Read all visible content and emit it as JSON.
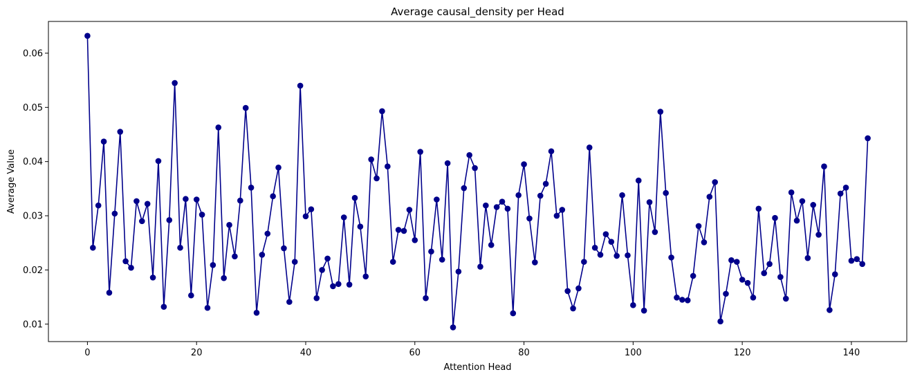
{
  "chart_data": {
    "type": "line",
    "title": "Average causal_density per Head",
    "xlabel": "Attention Head",
    "ylabel": "Average Value",
    "xlim": [
      -7.15,
      150.15
    ],
    "ylim": [
      0.00678,
      0.06586
    ],
    "x_ticks": [
      0,
      20,
      40,
      60,
      80,
      100,
      120,
      140
    ],
    "y_ticks": [
      0.01,
      0.02,
      0.03,
      0.04,
      0.05,
      0.06
    ],
    "x_tick_labels": [
      "0",
      "20",
      "40",
      "60",
      "80",
      "100",
      "120",
      "140"
    ],
    "y_tick_labels": [
      "0.01",
      "0.02",
      "0.03",
      "0.04",
      "0.05",
      "0.06"
    ],
    "grid": false,
    "line_color": "#00008b",
    "marker": "circle",
    "series": [
      {
        "x": [
          0,
          1,
          2,
          3,
          4,
          5,
          6,
          7,
          8,
          9,
          10,
          11,
          12,
          13,
          14,
          15,
          16,
          17,
          18,
          19,
          20,
          21,
          22,
          23,
          24,
          25,
          26,
          27,
          28,
          29,
          30,
          31,
          32,
          33,
          34,
          35,
          36,
          37,
          38,
          39,
          40,
          41,
          42,
          43,
          44,
          45,
          46,
          47,
          48,
          49,
          50,
          51,
          52,
          53,
          54,
          55,
          56,
          57,
          58,
          59,
          60,
          61,
          62,
          63,
          64,
          65,
          66,
          67,
          68,
          69,
          70,
          71,
          72,
          73,
          74,
          75,
          76,
          77,
          78,
          79,
          80,
          81,
          82,
          83,
          84,
          85,
          86,
          87,
          88,
          89,
          90,
          91,
          92,
          93,
          94,
          95,
          96,
          97,
          98,
          99,
          100,
          101,
          102,
          103,
          104,
          105,
          106,
          107,
          108,
          109,
          110,
          111,
          112,
          113,
          114,
          115,
          116,
          117,
          118,
          119,
          120,
          121,
          122,
          123,
          124,
          125,
          126,
          127,
          128,
          129,
          130,
          131,
          132,
          133,
          134,
          135,
          136,
          137,
          138,
          139,
          140,
          141,
          142,
          143
        ],
        "values": [
          0.0632,
          0.0241,
          0.0319,
          0.0437,
          0.0158,
          0.0304,
          0.0455,
          0.0216,
          0.0204,
          0.0327,
          0.029,
          0.0322,
          0.0186,
          0.0401,
          0.0132,
          0.0292,
          0.0545,
          0.0241,
          0.0331,
          0.0153,
          0.033,
          0.0302,
          0.013,
          0.0209,
          0.0463,
          0.0185,
          0.0283,
          0.0225,
          0.0328,
          0.0499,
          0.0352,
          0.0121,
          0.0228,
          0.0267,
          0.0336,
          0.0389,
          0.024,
          0.0141,
          0.0215,
          0.054,
          0.0299,
          0.0312,
          0.0148,
          0.02,
          0.0221,
          0.017,
          0.0174,
          0.0297,
          0.0173,
          0.0333,
          0.028,
          0.0188,
          0.0404,
          0.0369,
          0.0493,
          0.0391,
          0.0215,
          0.0274,
          0.0272,
          0.0311,
          0.0255,
          0.0418,
          0.0148,
          0.0234,
          0.033,
          0.0219,
          0.0397,
          0.0094,
          0.0197,
          0.0351,
          0.0412,
          0.0388,
          0.0206,
          0.0319,
          0.0246,
          0.0316,
          0.0326,
          0.0313,
          0.012,
          0.0338,
          0.0395,
          0.0295,
          0.0214,
          0.0337,
          0.0359,
          0.0419,
          0.03,
          0.0311,
          0.0161,
          0.0129,
          0.0166,
          0.0215,
          0.0426,
          0.0241,
          0.0228,
          0.0266,
          0.0252,
          0.0226,
          0.0338,
          0.0227,
          0.0135,
          0.0365,
          0.0125,
          0.0325,
          0.027,
          0.0492,
          0.0342,
          0.0223,
          0.0149,
          0.0145,
          0.0144,
          0.0189,
          0.0281,
          0.0251,
          0.0335,
          0.0362,
          0.0105,
          0.0156,
          0.0218,
          0.0215,
          0.0182,
          0.0176,
          0.0149,
          0.0313,
          0.0194,
          0.0211,
          0.0296,
          0.0187,
          0.0147,
          0.0343,
          0.0291,
          0.0327,
          0.0222,
          0.032,
          0.0265,
          0.0391,
          0.0126,
          0.0192,
          0.0341,
          0.0352,
          0.0217,
          0.022,
          0.0211,
          0.0443
        ]
      }
    ]
  }
}
